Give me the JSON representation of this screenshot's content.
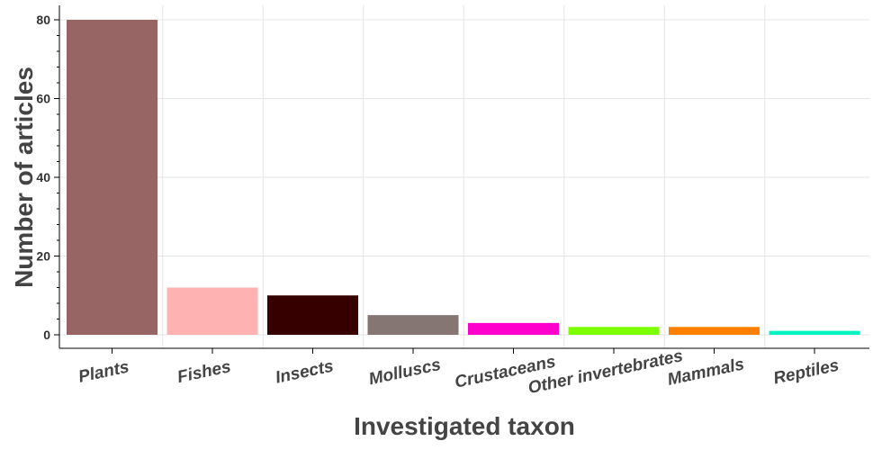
{
  "chart_data": {
    "type": "bar",
    "categories": [
      "Plants",
      "Fishes",
      "Insects",
      "Molluscs",
      "Crustaceans",
      "Other invertebrates",
      "Mammals",
      "Reptiles"
    ],
    "values": [
      80,
      12,
      10,
      5,
      3,
      2,
      2,
      1
    ],
    "colors": [
      "#966564",
      "#ffb2b2",
      "#360000",
      "#857573",
      "#ff00cc",
      "#7cff00",
      "#ff8000",
      "#00f5c3"
    ],
    "title": "",
    "xlabel": "Investigated taxon",
    "ylabel": "Number of articles",
    "ylim": [
      0,
      80
    ],
    "yticks": [
      "0",
      "20",
      "40",
      "60",
      "80"
    ],
    "grid": true,
    "legend": "none"
  }
}
